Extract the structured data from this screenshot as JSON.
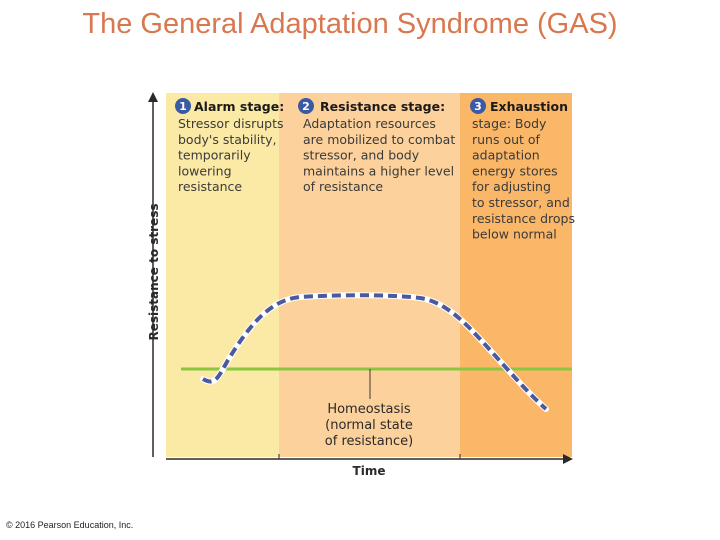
{
  "title": "The General Adaptation Syndrome (GAS)",
  "copyright": "© 2016 Pearson Education, Inc.",
  "diagram": {
    "y_axis_label": "Resistance to stress",
    "x_axis_label": "Time",
    "colors": {
      "alarm": "#fbeaa6",
      "resistance": "#fdd19b",
      "exhaustion": "#fbb768",
      "badge": "#3b5aa6",
      "curve": "#4a5aa0",
      "homeostasis_line": "#8cc63f"
    },
    "stages": [
      {
        "number": "1",
        "heading": "Alarm stage:",
        "lines": [
          "Stressor disrupts",
          "body's stability,",
          "temporarily",
          "lowering",
          "resistance"
        ]
      },
      {
        "number": "2",
        "heading": "Resistance stage:",
        "lines": [
          "Adaptation resources",
          "are mobilized to combat",
          "stressor, and body",
          "maintains a higher level",
          "of resistance"
        ]
      },
      {
        "number": "3",
        "heading": "Exhaustion",
        "lines": [
          "stage: Body",
          "runs out of",
          "adaptation",
          "energy stores",
          "for adjusting",
          "to stressor, and",
          "resistance drops",
          "below normal"
        ]
      }
    ],
    "homeostasis": {
      "lines": [
        "Homeostasis",
        "(normal state",
        "of resistance)"
      ]
    }
  }
}
